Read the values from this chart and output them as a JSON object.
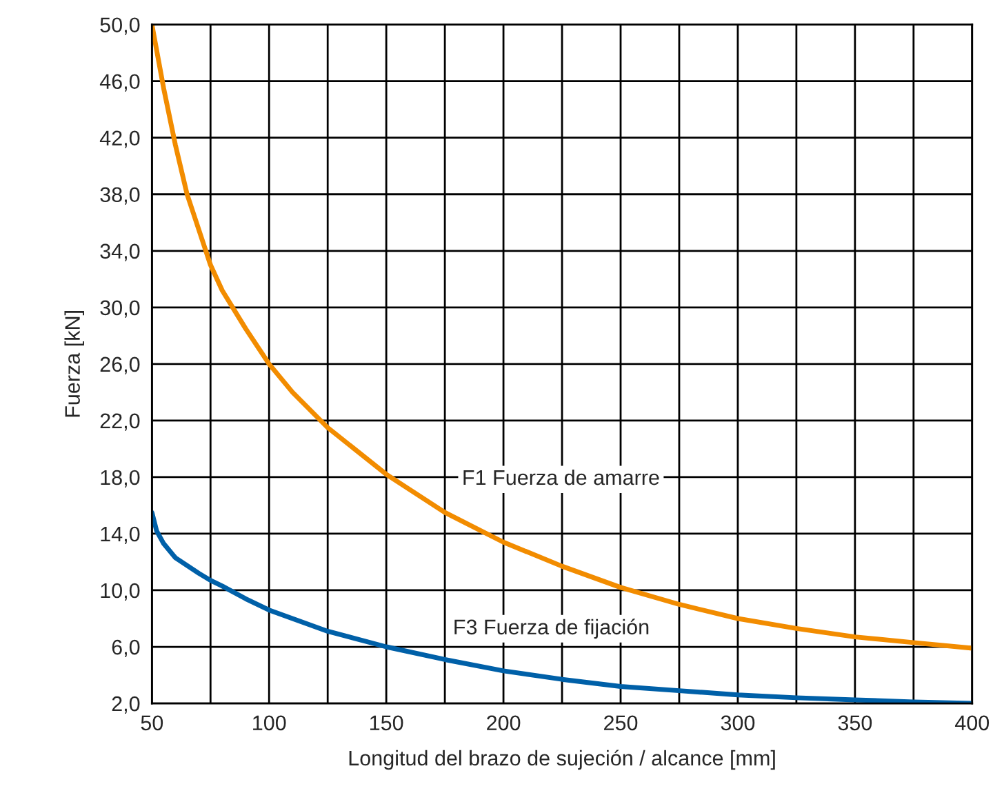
{
  "chart_data": {
    "type": "line",
    "xlabel": "Longitud del brazo de sujeción / alcance [mm]",
    "ylabel": "Fuerza [kN]",
    "xlim": [
      50,
      400
    ],
    "ylim": [
      2,
      50
    ],
    "xticks": [
      50,
      {
        "value": 75,
        "label": null
      },
      100,
      {
        "value": 125,
        "label": null
      },
      150,
      {
        "value": 175,
        "label": null
      },
      200,
      {
        "value": 225,
        "label": null
      },
      250,
      {
        "value": 275,
        "label": null
      },
      300,
      {
        "value": 325,
        "label": null
      },
      350,
      {
        "value": 375,
        "label": null
      },
      400
    ],
    "yticks": [
      {
        "value": 2,
        "label": "2,0"
      },
      {
        "value": 6,
        "label": "6,0"
      },
      {
        "value": 10,
        "label": "10,0"
      },
      {
        "value": 14,
        "label": "14,0"
      },
      {
        "value": 18,
        "label": "18,0"
      },
      {
        "value": 22,
        "label": "22,0"
      },
      {
        "value": 26,
        "label": "26,0"
      },
      {
        "value": 30,
        "label": "30,0"
      },
      {
        "value": 34,
        "label": "34,0"
      },
      {
        "value": 38,
        "label": "38,0"
      },
      {
        "value": 42,
        "label": "42,0"
      },
      {
        "value": 46,
        "label": "46,0"
      },
      {
        "value": 50,
        "label": "50,0"
      }
    ],
    "grid": true,
    "legend": false,
    "marker": "none",
    "line_style": "solid",
    "series": [
      {
        "name": "F1 Fuerza de amarre",
        "color": "#f28c00",
        "x": [
          50,
          55,
          60,
          65,
          70,
          75,
          80,
          90,
          100,
          110,
          125,
          150,
          175,
          200,
          225,
          250,
          275,
          300,
          325,
          350,
          375,
          400
        ],
        "values": [
          50,
          45.5,
          41.5,
          38,
          35.5,
          33,
          31.2,
          28.5,
          26,
          24,
          21.5,
          18.2,
          15.5,
          13.4,
          11.7,
          10.2,
          9,
          8,
          7.3,
          6.7,
          6.3,
          5.9
        ]
      },
      {
        "name": "F3 Fuerza de fijación",
        "color": "#0060a8",
        "x": [
          50,
          52,
          55,
          60,
          70,
          75,
          80,
          90,
          100,
          125,
          150,
          175,
          200,
          225,
          250,
          275,
          300,
          325,
          350,
          375,
          400
        ],
        "values": [
          15.5,
          14.2,
          13.3,
          12.3,
          11.2,
          10.7,
          10.3,
          9.4,
          8.6,
          7.1,
          6,
          5.1,
          4.3,
          3.7,
          3.2,
          2.9,
          2.6,
          2.4,
          2.25,
          2.1,
          2.0
        ]
      }
    ]
  }
}
